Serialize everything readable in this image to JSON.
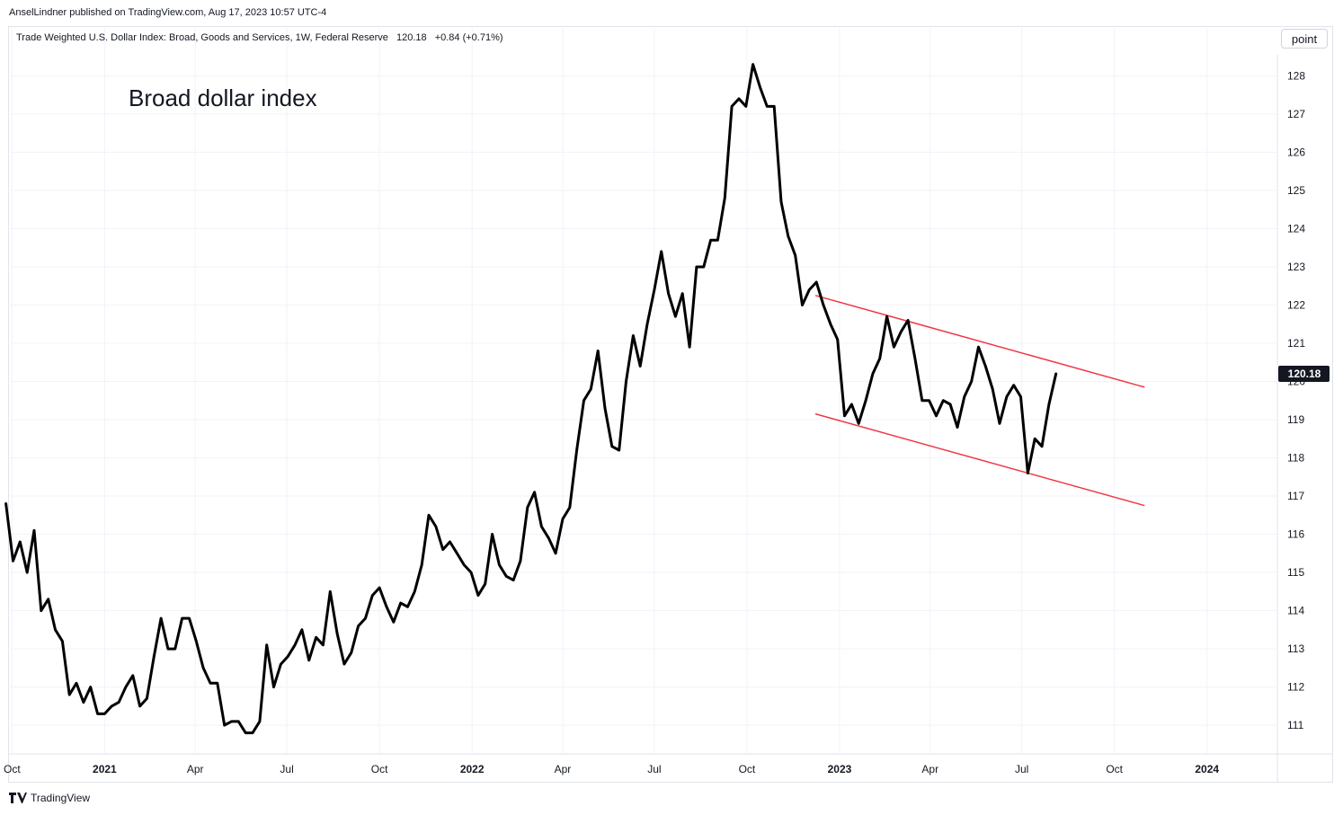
{
  "publisher": "AnselLindner published on TradingView.com, Aug 17, 2023 10:57 UTC-4",
  "legend": {
    "symbol": "Trade Weighted U.S. Dollar Index: Broad, Goods and Services, 1W, Federal Reserve",
    "last": "120.18",
    "change": "+0.84 (+0.71%)"
  },
  "scale_button": "point",
  "annotation": "Broad dollar index",
  "brand": "TradingView",
  "price_badge": "120.18",
  "colors": {
    "line": "#000000",
    "trendline": "#f23645",
    "grid": "#f0f3fa",
    "badge_bg": "#131722",
    "badge_text": "#ffffff"
  },
  "chart_data": {
    "type": "line",
    "title": "",
    "xlabel": "",
    "ylabel": "",
    "ylim": [
      110.25,
      128.55
    ],
    "xlim": [
      "2020-09-28",
      "2024-03-10"
    ],
    "y_ticks": [
      "111",
      "112",
      "113",
      "114",
      "115",
      "116",
      "117",
      "118",
      "119",
      "120",
      "121",
      "122",
      "123",
      "124",
      "125",
      "126",
      "127",
      "128"
    ],
    "x_ticks": [
      {
        "label": "Oct",
        "date": "2020-10-01",
        "major": false
      },
      {
        "label": "2021",
        "date": "2021-01-01",
        "major": true
      },
      {
        "label": "Apr",
        "date": "2021-04-01",
        "major": false
      },
      {
        "label": "Jul",
        "date": "2021-07-01",
        "major": false
      },
      {
        "label": "Oct",
        "date": "2021-10-01",
        "major": false
      },
      {
        "label": "2022",
        "date": "2022-01-01",
        "major": true
      },
      {
        "label": "Apr",
        "date": "2022-04-01",
        "major": false
      },
      {
        "label": "Jul",
        "date": "2022-07-01",
        "major": false
      },
      {
        "label": "Oct",
        "date": "2022-10-01",
        "major": false
      },
      {
        "label": "2023",
        "date": "2023-01-01",
        "major": true
      },
      {
        "label": "Apr",
        "date": "2023-04-01",
        "major": false
      },
      {
        "label": "Jul",
        "date": "2023-07-01",
        "major": false
      },
      {
        "label": "Oct",
        "date": "2023-10-01",
        "major": false
      },
      {
        "label": "2024",
        "date": "2024-01-01",
        "major": true
      }
    ],
    "series": [
      {
        "start": "2020-09-25",
        "frequency": "weekly",
        "values": [
          116.8,
          115.3,
          115.8,
          115.0,
          116.1,
          114.0,
          114.3,
          113.5,
          113.2,
          111.8,
          112.1,
          111.6,
          112.0,
          111.3,
          111.3,
          111.5,
          111.6,
          112.0,
          112.3,
          111.5,
          111.7,
          112.8,
          113.8,
          113.0,
          113.0,
          113.8,
          113.8,
          113.2,
          112.5,
          112.1,
          112.1,
          111.0,
          111.1,
          111.1,
          110.8,
          110.8,
          111.1,
          113.1,
          112.0,
          112.6,
          112.8,
          113.1,
          113.5,
          112.7,
          113.3,
          113.1,
          114.5,
          113.4,
          112.6,
          112.9,
          113.6,
          113.8,
          114.4,
          114.6,
          114.1,
          113.7,
          114.2,
          114.1,
          114.5,
          115.2,
          116.5,
          116.2,
          115.6,
          115.8,
          115.5,
          115.2,
          115.0,
          114.4,
          114.7,
          116.0,
          115.2,
          114.9,
          114.8,
          115.3,
          116.7,
          117.1,
          116.2,
          115.9,
          115.5,
          116.4,
          116.7,
          118.2,
          119.5,
          119.8,
          120.8,
          119.3,
          118.3,
          118.2,
          120.0,
          121.2,
          120.4,
          121.5,
          122.4,
          123.4,
          122.3,
          121.7,
          122.3,
          120.9,
          123.0,
          123.0,
          123.7,
          123.7,
          124.8,
          127.2,
          127.4,
          127.2,
          128.3,
          127.7,
          127.2,
          127.2,
          124.7,
          123.8,
          123.3,
          122.0,
          122.4,
          122.6,
          122.0,
          121.5,
          121.1,
          119.1,
          119.4,
          118.9,
          119.5,
          120.2,
          120.6,
          121.7,
          120.9,
          121.3,
          121.6,
          120.6,
          119.5,
          119.5,
          119.1,
          119.5,
          119.4,
          118.8,
          119.6,
          120.0,
          120.9,
          120.4,
          119.8,
          118.9,
          119.6,
          119.9,
          119.6,
          117.6,
          118.5,
          118.3,
          119.4,
          120.2
        ]
      }
    ],
    "trendlines": [
      {
        "from": [
          "2022-12-08",
          122.25
        ],
        "to": [
          "2023-10-31",
          119.85
        ]
      },
      {
        "from": [
          "2022-12-08",
          119.15
        ],
        "to": [
          "2023-10-31",
          116.75
        ]
      }
    ]
  }
}
